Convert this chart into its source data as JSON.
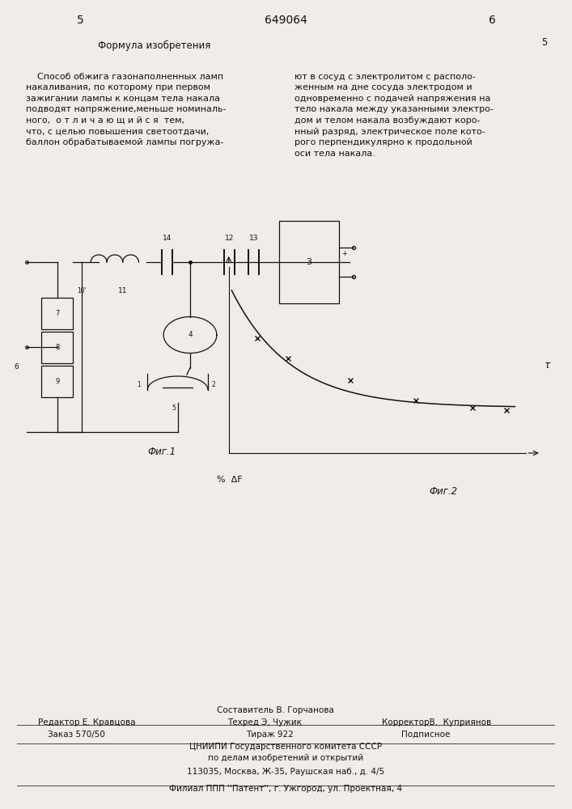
{
  "page_color": "#f0ede8",
  "page_number_left": "5",
  "page_number_center": "649064",
  "page_number_right": "6",
  "left_col_title": "Формула изобретения",
  "left_col_text": "    Способ обжига газонаполненных ламп\nнакаливания, по которому при первом\nзажигании лампы к концам тела накала\nподводят напряжение,меньше номиналь-\nного,  о т л и ч а ю щ и й с я  тем,\nчто, с целью повышения светоотдачи,\nбаллон обрабатываемой лампы погружа-",
  "right_col_number": "5",
  "right_col_text": "ют в сосуд с электролитом с располо-\nженным на дне сосуда электродом и\nодновременно с подачей напряжения на\nтело накала между указанными электро-\nдом и телом накала возбуждают коро-\nнный разряд, электрическое поле кото-\nрого перпендикулярно к продольной\nоси тела накала.",
  "fig1_caption": "Фиг.1",
  "fig2_caption": "Фиг.2",
  "graph_xlabel": "%  ΔF",
  "graph_ylabel": "τ",
  "curve_x": [
    0.0,
    0.05,
    0.1,
    0.18,
    0.3,
    0.45,
    0.6,
    0.75,
    0.88,
    1.0
  ],
  "curve_y": [
    1.0,
    0.78,
    0.66,
    0.56,
    0.46,
    0.38,
    0.32,
    0.28,
    0.265,
    0.255
  ],
  "data_points_x": [
    0.09,
    0.2,
    0.42,
    0.65,
    0.85,
    0.97
  ],
  "data_points_y": [
    0.68,
    0.56,
    0.43,
    0.31,
    0.27,
    0.255
  ],
  "footer_editor": "Редактор Е. Кравцова",
  "footer_compiler_label": "Составитель В. Горчанова",
  "footer_techred": "Техред Э. Чужик",
  "footer_corrector": "КорректорВ.  Куприянов",
  "footer_order": "Заказ 570/50",
  "footer_tirazh": "Тираж 922",
  "footer_podpisnoe": "Подписное",
  "footer_org1": "ЦНИИПИ Государственного комитета СССР",
  "footer_org2": "по делам изобретений и открытий",
  "footer_org3": "113035, Москва, Ж-35, Раушская наб., д. 4/5",
  "footer_filial": "Филиал ППП ''Патент'', г. Ужгород, ул. Проектная, 4"
}
